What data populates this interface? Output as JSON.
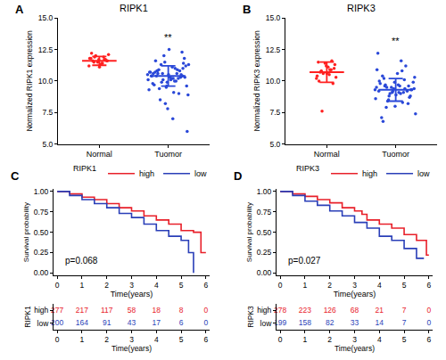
{
  "chart_data": [
    {
      "panel": "A",
      "type": "dot",
      "title": "RIPK1",
      "y_label": "Normalized RIPK1 expression",
      "categories": [
        "Normal",
        "Tuomor"
      ],
      "colors": [
        "#ff2020",
        "#2a48d8"
      ],
      "values": [
        [
          11.2,
          11.4,
          11.5,
          11.6,
          11.7,
          11.8,
          11.9,
          12.0,
          12.1,
          11.3,
          11.6,
          11.7,
          11.5,
          11.8,
          11.4,
          11.9,
          11.6,
          11.1,
          12.2,
          11.7
        ],
        [
          10.5,
          10.2,
          10.8,
          11.0,
          9.9,
          10.4,
          10.6,
          11.3,
          9.6,
          10.1,
          10.7,
          10.3,
          11.5,
          9.3,
          10.0,
          10.9,
          11.8,
          10.5,
          9.8,
          10.2,
          10.6,
          8.9,
          11.1,
          10.4,
          12.3,
          9.5,
          10.7,
          10.0,
          8.5,
          11.2,
          10.3,
          9.7,
          10.8,
          12.0,
          10.1,
          9.1,
          10.6,
          11.4,
          7.8,
          10.4,
          10.9,
          9.9,
          6.0,
          10.2,
          11.6,
          10.5,
          8.2,
          10.7,
          11.0,
          9.4,
          10.3,
          12.5,
          10.6,
          9.0,
          10.1,
          11.3,
          7.0,
          10.8,
          10.4,
          9.6
        ]
      ],
      "mean": [
        11.6,
        10.4
      ],
      "sd": [
        0.35,
        0.8
      ],
      "ylim": [
        5,
        15
      ],
      "yticks": [
        {
          "value": 5,
          "label": "5.0"
        },
        {
          "value": 7.5,
          "label": "7.5"
        },
        {
          "value": 10,
          "label": "10.0"
        },
        {
          "value": 12.5,
          "label": "12.5"
        },
        {
          "value": 15,
          "label": "15.0"
        }
      ],
      "annotations": [
        {
          "text": "**",
          "category": "Tuomor",
          "y": 12.9
        }
      ]
    },
    {
      "panel": "B",
      "type": "dot",
      "title": "RIPK3",
      "y_label": "Normalized RIPK3 expression",
      "categories": [
        "Normal",
        "Tuomor"
      ],
      "colors": [
        "#ff2020",
        "#2a48d8"
      ],
      "values": [
        [
          10.2,
          10.5,
          10.8,
          11.0,
          11.2,
          11.5,
          10.9,
          10.6,
          10.3,
          11.1,
          10.7,
          9.8,
          11.4,
          10.4,
          10.9,
          7.6,
          11.3,
          10.6,
          10.0,
          11.6
        ],
        [
          9.3,
          9.0,
          9.6,
          8.8,
          9.9,
          9.2,
          10.1,
          8.5,
          9.4,
          9.7,
          10.4,
          8.2,
          9.1,
          9.5,
          10.8,
          7.9,
          9.3,
          8.9,
          9.8,
          11.2,
          9.0,
          7.4,
          9.6,
          10.2,
          8.7,
          9.4,
          12.2,
          9.1,
          8.4,
          9.9,
          10.6,
          7.1,
          9.2,
          9.5,
          8.6,
          11.6,
          9.7,
          9.3,
          8.0,
          10.0,
          9.4,
          8.8,
          10.3,
          9.1,
          6.8,
          9.6,
          9.2,
          10.9,
          8.3,
          9.5
        ]
      ],
      "mean": [
        10.7,
        9.3
      ],
      "sd": [
        0.8,
        0.9
      ],
      "ylim": [
        5,
        15
      ],
      "yticks": [
        {
          "value": 5,
          "label": "5.0"
        },
        {
          "value": 7.5,
          "label": "7.5"
        },
        {
          "value": 10,
          "label": "10.0"
        },
        {
          "value": 12.5,
          "label": "12.5"
        },
        {
          "value": 15,
          "label": "15.0"
        }
      ],
      "annotations": [
        {
          "text": "**",
          "category": "Tuomor",
          "y": 12.6
        }
      ]
    },
    {
      "panel": "C",
      "type": "survival",
      "x_label": "Time(years)",
      "y_label": "Survival probability",
      "legend_title": "RIPK1",
      "series": [
        {
          "name": "high",
          "color": "#e8202a",
          "x": [
            0,
            0.5,
            1,
            1.5,
            2,
            2.5,
            3,
            3.5,
            4,
            4.5,
            5,
            5.5,
            5.8,
            6
          ],
          "values": [
            1.0,
            0.97,
            0.93,
            0.9,
            0.85,
            0.8,
            0.76,
            0.7,
            0.65,
            0.6,
            0.52,
            0.5,
            0.25,
            0.25
          ]
        },
        {
          "name": "low",
          "color": "#2a3fb8",
          "x": [
            0,
            0.5,
            1,
            1.5,
            2,
            2.5,
            3,
            3.5,
            4,
            4.5,
            5,
            5.3,
            5.5
          ],
          "values": [
            1.0,
            0.95,
            0.9,
            0.85,
            0.8,
            0.73,
            0.68,
            0.6,
            0.52,
            0.45,
            0.4,
            0.25,
            0.0
          ]
        }
      ],
      "xlim": [
        -0.15,
        6.15
      ],
      "xticks": [
        0,
        1,
        2,
        3,
        4,
        5,
        6
      ],
      "ylim": [
        -0.03,
        1.03
      ],
      "yticks": [
        {
          "value": 0,
          "label": "0.00"
        },
        {
          "value": 0.25,
          "label": "0.25"
        },
        {
          "value": 0.5,
          "label": "0.50"
        },
        {
          "value": 0.75,
          "label": "0.75"
        },
        {
          "value": 1,
          "label": "1.00"
        }
      ],
      "annotations": [
        {
          "text": "p=0.068",
          "x": 0.25,
          "y": 0.15
        }
      ],
      "risk_table": {
        "title": "RIPK1",
        "x_label": "Time(years)",
        "times": [
          0,
          1,
          2,
          3,
          4,
          5,
          6
        ],
        "rows": [
          {
            "name": "high",
            "values": [
              277,
              217,
              117,
              58,
              18,
              8,
              0
            ]
          },
          {
            "name": "low",
            "values": [
              200,
              164,
              91,
              43,
              17,
              6,
              0
            ]
          }
        ]
      }
    },
    {
      "panel": "D",
      "type": "survival",
      "x_label": "Time(years)",
      "y_label": "Survival probability",
      "legend_title": "RIPK3",
      "series": [
        {
          "name": "high",
          "color": "#e8202a",
          "x": [
            0,
            0.5,
            1,
            1.5,
            2,
            2.5,
            3,
            3.3,
            3.5,
            4,
            4.5,
            5,
            5.5,
            5.9,
            6
          ],
          "values": [
            1.0,
            0.97,
            0.94,
            0.9,
            0.86,
            0.8,
            0.76,
            0.72,
            0.65,
            0.6,
            0.55,
            0.47,
            0.4,
            0.22,
            0.22
          ]
        },
        {
          "name": "low",
          "color": "#2a3fb8",
          "x": [
            0,
            0.5,
            1,
            1.5,
            2,
            2.5,
            3,
            3.5,
            4,
            4.5,
            5,
            5.5,
            5.8
          ],
          "values": [
            1.0,
            0.95,
            0.88,
            0.83,
            0.76,
            0.7,
            0.62,
            0.55,
            0.45,
            0.4,
            0.3,
            0.18,
            0.18
          ]
        }
      ],
      "xlim": [
        -0.15,
        6.15
      ],
      "xticks": [
        0,
        1,
        2,
        3,
        4,
        5,
        6
      ],
      "ylim": [
        -0.03,
        1.03
      ],
      "yticks": [
        {
          "value": 0,
          "label": "0.00"
        },
        {
          "value": 0.25,
          "label": "0.25"
        },
        {
          "value": 0.5,
          "label": "0.50"
        },
        {
          "value": 0.75,
          "label": "0.75"
        },
        {
          "value": 1,
          "label": "1.00"
        }
      ],
      "annotations": [
        {
          "text": "p=0.027",
          "x": 0.25,
          "y": 0.15
        }
      ],
      "risk_table": {
        "title": "RIPK3",
        "x_label": "Time(years)",
        "times": [
          0,
          1,
          2,
          3,
          4,
          5,
          6
        ],
        "rows": [
          {
            "name": "high",
            "values": [
              278,
              223,
              126,
              68,
              21,
              7,
              0
            ]
          },
          {
            "name": "low",
            "values": [
              199,
              158,
              82,
              33,
              14,
              7,
              0
            ]
          }
        ]
      }
    }
  ]
}
